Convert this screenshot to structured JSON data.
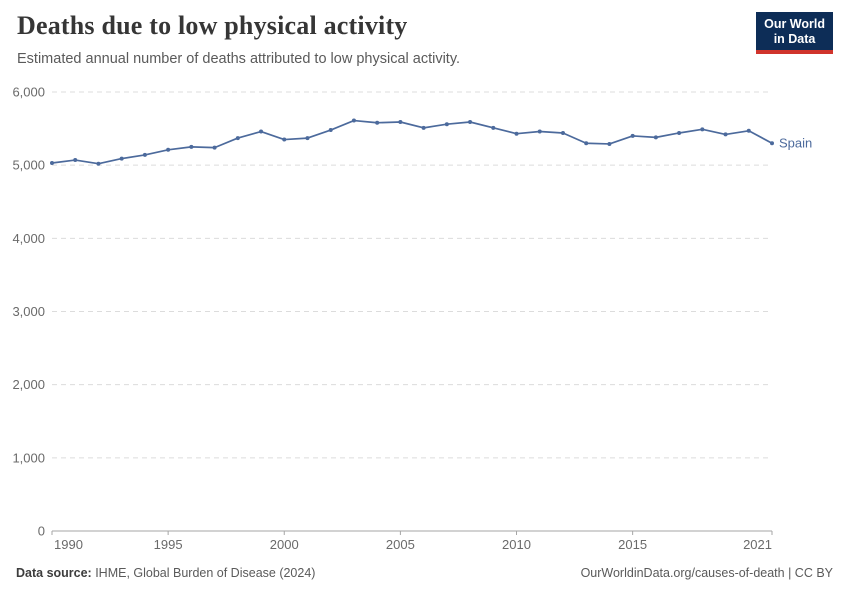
{
  "header": {
    "title": "Deaths due to low physical activity",
    "subtitle": "Estimated annual number of deaths attributed to low physical activity.",
    "logo": {
      "line1": "Our World",
      "line2": "in Data"
    }
  },
  "chart_data": {
    "type": "line",
    "title": "Deaths due to low physical activity",
    "subtitle": "Estimated annual number of deaths attributed to low physical activity.",
    "x": [
      1990,
      1991,
      1992,
      1993,
      1994,
      1995,
      1996,
      1997,
      1998,
      1999,
      2000,
      2001,
      2002,
      2003,
      2004,
      2005,
      2006,
      2007,
      2008,
      2009,
      2010,
      2011,
      2012,
      2013,
      2014,
      2015,
      2016,
      2017,
      2018,
      2019,
      2020,
      2021
    ],
    "series": [
      {
        "name": "Spain",
        "color": "#4C6A9C",
        "values": [
          5030,
          5070,
          5020,
          5090,
          5140,
          5210,
          5250,
          5240,
          5370,
          5460,
          5350,
          5370,
          5480,
          5610,
          5580,
          5590,
          5510,
          5560,
          5590,
          5510,
          5430,
          5460,
          5440,
          5300,
          5290,
          5400,
          5380,
          5440,
          5490,
          5420,
          5470,
          5300
        ]
      }
    ],
    "x_ticks": [
      1990,
      1995,
      2000,
      2005,
      2010,
      2015,
      2021
    ],
    "y_ticks": [
      0,
      1000,
      2000,
      3000,
      4000,
      5000,
      6000
    ],
    "xlim": [
      1990,
      2021
    ],
    "ylim": [
      0,
      6000
    ],
    "grid": "horizontal-dashed",
    "legend_position": "inline-end-label",
    "xlabel": "",
    "ylabel": ""
  },
  "footer": {
    "source_label": "Data source:",
    "source_text": " IHME, Global Burden of Disease (2024)",
    "credit": "OurWorldinData.org/causes-of-death | CC BY"
  },
  "colors": {
    "line": "#4C6A9C",
    "grid": "#dcdcdc",
    "axis": "#a5a5a5",
    "tick_label": "#6a6a6a",
    "logo_bg": "#0d2d57",
    "logo_accent": "#d0342c"
  }
}
